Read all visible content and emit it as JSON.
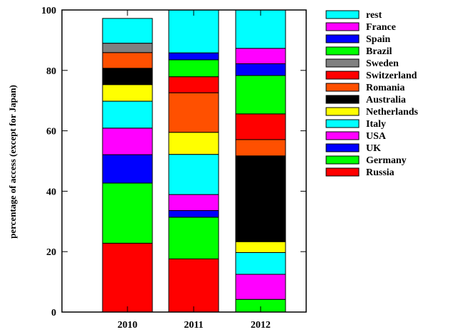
{
  "chart_data": {
    "type": "bar",
    "stacked": true,
    "title": "",
    "xlabel": "",
    "ylabel": "percentage of access (except for Japan)",
    "ylim": [
      0,
      100
    ],
    "yticks": [
      "0",
      "20",
      "40",
      "60",
      "80",
      "100"
    ],
    "categories": [
      "2010",
      "2011",
      "2012"
    ],
    "legend_position": "top-right",
    "series": [
      {
        "name": "Russia",
        "color": "#ff0000",
        "values": [
          22.8,
          17.6,
          0.0
        ]
      },
      {
        "name": "Germany",
        "color": "#00ff00",
        "values": [
          19.9,
          13.8,
          4.2
        ]
      },
      {
        "name": "UK",
        "color": "#0000ff",
        "values": [
          9.4,
          2.2,
          0.0
        ]
      },
      {
        "name": "USA",
        "color": "#ff00ff",
        "values": [
          8.8,
          5.3,
          8.3
        ]
      },
      {
        "name": "Italy",
        "color": "#00ffff",
        "values": [
          8.9,
          13.3,
          7.2
        ]
      },
      {
        "name": "Netherlands",
        "color": "#ffff00",
        "values": [
          5.5,
          7.3,
          3.6
        ]
      },
      {
        "name": "Australia",
        "color": "#000000",
        "values": [
          5.4,
          0.0,
          28.4
        ]
      },
      {
        "name": "Romania",
        "color": "#ff5000",
        "values": [
          5.2,
          13.1,
          5.4
        ]
      },
      {
        "name": "Switzerland",
        "color": "#ff0000",
        "values": [
          0.0,
          5.3,
          8.5
        ]
      },
      {
        "name": "Sweden",
        "color": "#808080",
        "values": [
          3.1,
          0.0,
          0.0
        ]
      },
      {
        "name": "Brazil",
        "color": "#00ff00",
        "values": [
          0.0,
          5.6,
          12.7
        ]
      },
      {
        "name": "Spain",
        "color": "#0000ff",
        "values": [
          0.0,
          2.3,
          3.9
        ]
      },
      {
        "name": "France",
        "color": "#ff00ff",
        "values": [
          0.0,
          0.0,
          5.1
        ]
      },
      {
        "name": "rest",
        "color": "#00ffff",
        "values": [
          8.2,
          14.2,
          12.7
        ]
      }
    ]
  }
}
